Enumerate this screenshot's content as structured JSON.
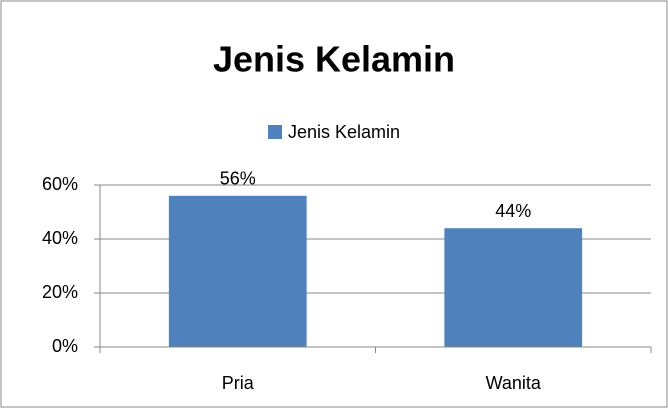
{
  "chart_data": {
    "type": "bar",
    "title": "Jenis Kelamin",
    "categories": [
      "Pria",
      "Wanita"
    ],
    "series": [
      {
        "name": "Jenis Kelamin",
        "color": "#4f81bd",
        "values": [
          56,
          44
        ],
        "value_labels": [
          "56%",
          "44%"
        ]
      }
    ],
    "ylim": [
      0,
      60
    ],
    "yticks": [
      {
        "value": 0,
        "label": "0%"
      },
      {
        "value": 20,
        "label": "20%"
      },
      {
        "value": 40,
        "label": "40%"
      },
      {
        "value": 60,
        "label": "60%"
      }
    ],
    "grid": true,
    "legend": "top"
  }
}
